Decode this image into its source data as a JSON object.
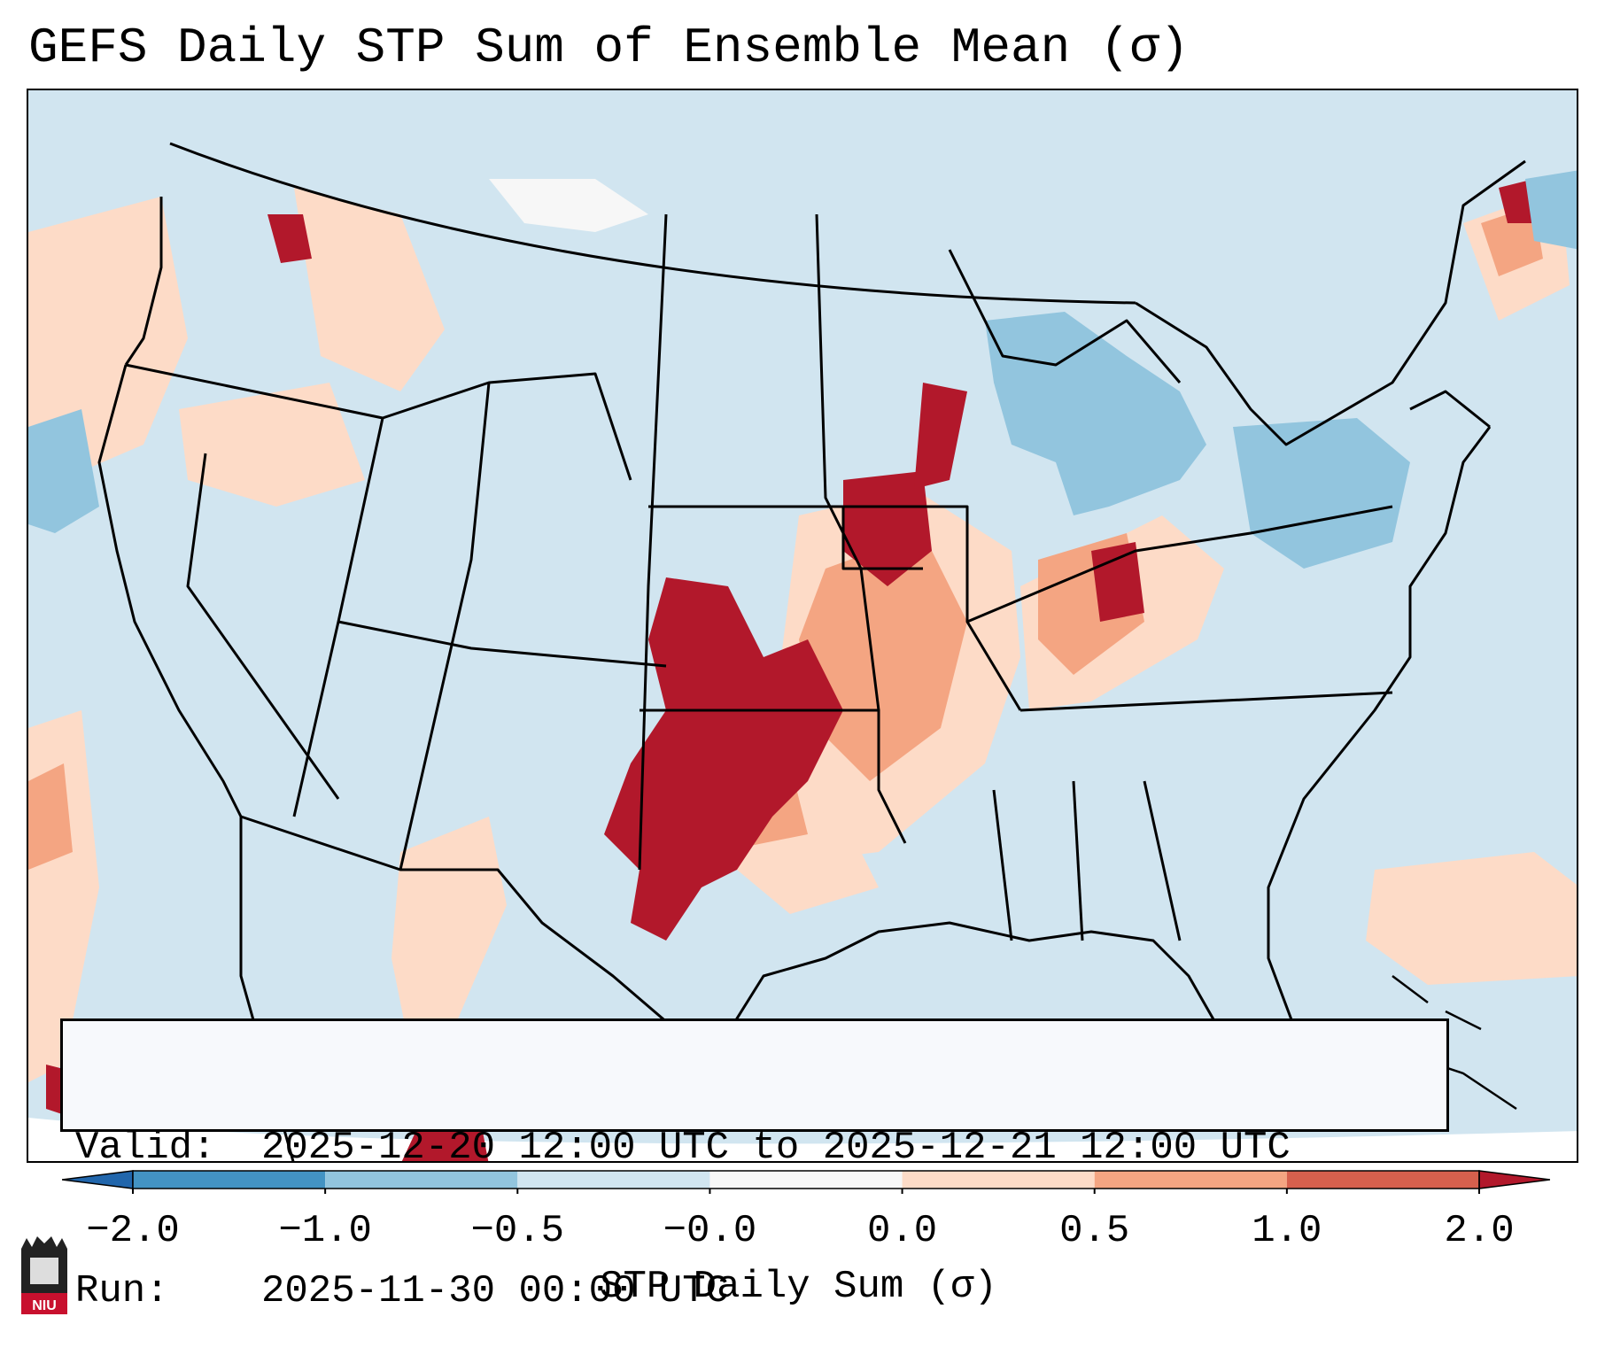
{
  "title": "GEFS Daily STP Sum of Ensemble Mean (σ)",
  "info": {
    "valid_label": "Valid:",
    "valid_text": "2025-12-20 12:00 UTC to 2025-12-21 12:00 UTC",
    "run_label": "Run:",
    "run_text": "2025-11-30 00:00 UTC"
  },
  "colorbar": {
    "label": "STP Daily Sum (σ)",
    "ticks": [
      "−2.0",
      "−1.0",
      "−0.5",
      "−0.0",
      "0.0",
      "0.5",
      "1.0",
      "2.0"
    ],
    "colors": [
      "#4393c3",
      "#92c5de",
      "#d1e5f0",
      "#f7f7f7",
      "#fddbc7",
      "#f4a582",
      "#d6604d"
    ],
    "under_color": "#2166ac",
    "over_color": "#b2182b"
  },
  "map": {
    "background_color": "#d1e5f0",
    "features": [
      {
        "name": "plains-outbreak-core",
        "category": "high",
        "color": "#b2182b"
      },
      {
        "name": "mississippi-valley",
        "category": "moderate",
        "color": "#f4a582"
      },
      {
        "name": "great-lakes-negative",
        "category": "negative",
        "color": "#92c5de"
      },
      {
        "name": "pacific-northwest",
        "category": "light",
        "color": "#fddbc7"
      }
    ]
  },
  "logo": {
    "text": "NIU",
    "icon": "university-seal-icon"
  }
}
